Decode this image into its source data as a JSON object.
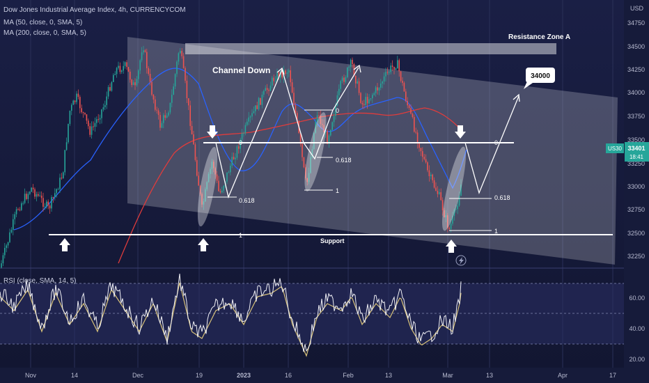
{
  "header": {
    "title_line": "Dow Jones Industrial Average Index, 4h, CURRENCYCOM",
    "ma1_line": "MA (50, close, 0, SMA, 5)",
    "ma2_line": "MA (200, close, 0, SMA, 5)",
    "rsi_line": "RSI (close, SMA, 14, 5)"
  },
  "price_axis": {
    "currency": "USD",
    "ticks": [
      "34750",
      "34500",
      "34250",
      "34000",
      "33750",
      "33500",
      "33250",
      "33000",
      "32750",
      "32500",
      "32250"
    ],
    "current_symbol": "US30",
    "current_price": "33401",
    "countdown": "18:41"
  },
  "rsi_axis": {
    "ticks": [
      "60.00",
      "40.00",
      "20.00"
    ]
  },
  "time_axis": {
    "ticks": [
      "Nov",
      "14",
      "Dec",
      "19",
      "2023",
      "16",
      "Feb",
      "13",
      "Mar",
      "13",
      "Apr",
      "17"
    ]
  },
  "annotations": {
    "resistance": "Resistance Zone A",
    "channel": "Channel Down",
    "support": "Support",
    "target": "34000",
    "fib_left_0": "0",
    "fib_left_618": "0.618",
    "fib_left_1": "1",
    "fib_mid_0": "0",
    "fib_mid_618": "0.618",
    "fib_mid_1": "1",
    "fib_right_0": "0",
    "fib_right_618": "0.618",
    "fib_right_1": "1"
  },
  "colors": {
    "background": "#161b3a",
    "candle_up": "#26a69a",
    "candle_down": "#ef5350",
    "ma50": "#2962ff",
    "ma200": "#e03c3c",
    "annotation": "#ffffff",
    "price_badge": "#26a69a"
  },
  "chart_data": [
    {
      "type": "candlestick",
      "title": "Dow Jones Industrial Average Index, 4h, CURRENCYCOM",
      "x_range": [
        "Nov",
        "Apr 17"
      ],
      "ylim": [
        32150,
        34900
      ],
      "series": [
        {
          "name": "MA (50, close, 0, SMA, 5)",
          "type": "line"
        },
        {
          "name": "MA (200, close, 0, SMA, 5)",
          "type": "line"
        }
      ],
      "levels": {
        "support": 32480,
        "resistance_zone": [
          34450,
          34560
        ],
        "projection_target": 34000,
        "current": 33401
      }
    },
    {
      "type": "line",
      "title": "RSI (close, SMA, 14, 5)",
      "ylim": [
        18,
        75
      ],
      "reference_lines": [
        70,
        50,
        30
      ]
    }
  ]
}
